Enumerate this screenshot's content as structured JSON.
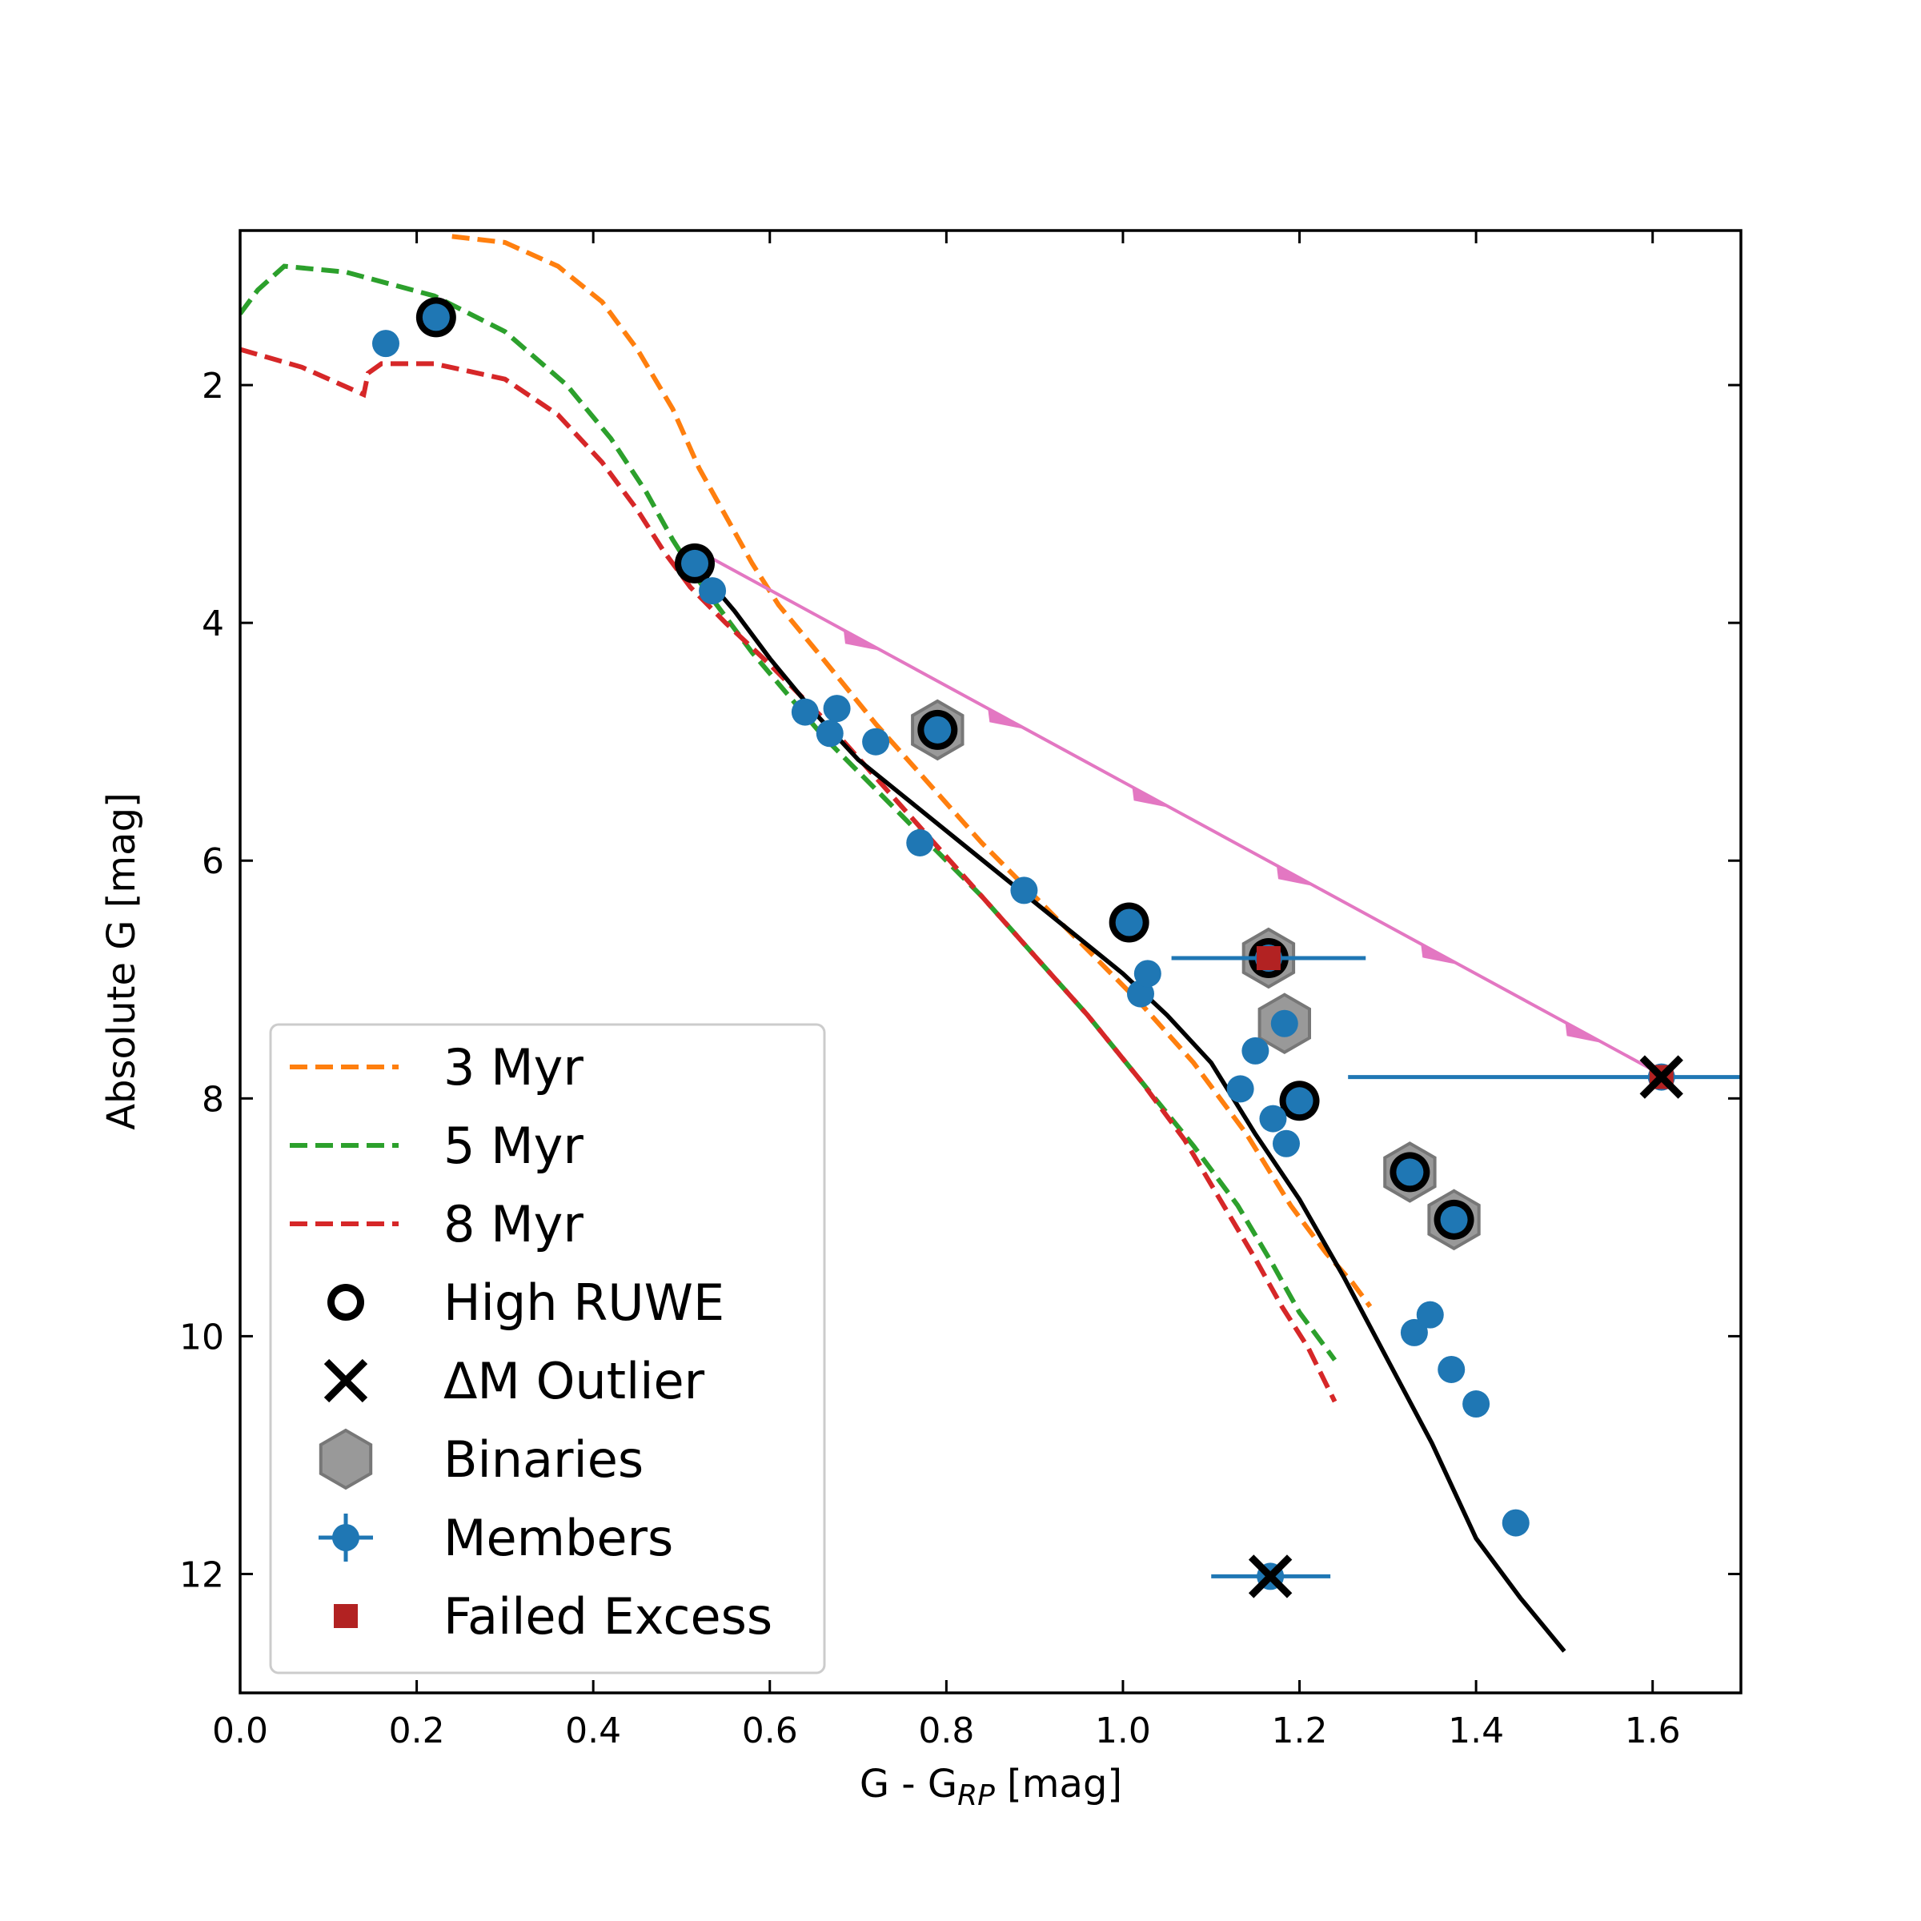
{
  "chart_data": {
    "type": "scatter",
    "xlabel": "G - G",
    "xlabel_sub": "RP",
    "xlabel_unit": " [mag]",
    "ylabel": "Absolute G [mag]",
    "xlim": [
      0.0,
      1.7
    ],
    "ylim": [
      13.0,
      0.7
    ],
    "y_inverted": true,
    "xticks": [
      0.0,
      0.2,
      0.4,
      0.6,
      0.8,
      1.0,
      1.2,
      1.4,
      1.6
    ],
    "xtick_labels": [
      "0.0",
      "0.2",
      "0.4",
      "0.6",
      "0.8",
      "1.0",
      "1.2",
      "1.4",
      "1.6"
    ],
    "yticks": [
      2,
      4,
      6,
      8,
      10,
      12
    ],
    "ytick_labels": [
      "2",
      "4",
      "6",
      "8",
      "10",
      "12"
    ],
    "legend_position": "bottom-left",
    "legend": [
      {
        "key": "iso3",
        "label": "3 Myr"
      },
      {
        "key": "iso5",
        "label": "5 Myr"
      },
      {
        "key": "iso8",
        "label": "8 Myr"
      },
      {
        "key": "ruwe",
        "label": "High RUWE"
      },
      {
        "key": "outlier",
        "label": "ΔM Outlier"
      },
      {
        "key": "binary",
        "label": "Binaries"
      },
      {
        "key": "members",
        "label": "Members"
      },
      {
        "key": "failed",
        "label": "Failed Excess"
      }
    ],
    "colors": {
      "iso3": "#ff7f0e",
      "iso5": "#2ca02c",
      "iso8": "#d62728",
      "members": "#1f77b4",
      "sequence": "#000000",
      "reddening": "#e377c2",
      "binary_fill": "#999999",
      "binary_edge": "#777777",
      "failed": "#b22222"
    },
    "isochrones": [
      {
        "name": "3 Myr",
        "key": "iso3",
        "x": [
          0.24,
          0.3,
          0.36,
          0.41,
          0.45,
          0.49,
          0.52,
          0.55,
          0.58,
          0.61,
          0.66,
          0.72,
          0.78,
          0.84,
          0.9,
          0.96,
          1.02,
          1.08,
          1.14,
          1.19,
          1.23,
          1.26,
          1.28
        ],
        "y": [
          0.75,
          0.8,
          1.0,
          1.3,
          1.7,
          2.2,
          2.7,
          3.1,
          3.5,
          3.85,
          4.3,
          4.85,
          5.35,
          5.85,
          6.3,
          6.75,
          7.2,
          7.7,
          8.3,
          8.9,
          9.3,
          9.55,
          9.75
        ]
      },
      {
        "name": "5 Myr",
        "key": "iso5",
        "x": [
          0.0,
          0.02,
          0.05,
          0.12,
          0.22,
          0.3,
          0.37,
          0.42,
          0.46,
          0.49,
          0.52,
          0.55,
          0.58,
          0.62,
          0.66,
          0.72,
          0.78,
          0.84,
          0.9,
          0.96,
          1.02,
          1.08,
          1.13,
          1.17,
          1.2,
          1.23,
          1.24
        ],
        "y": [
          1.4,
          1.2,
          1.0,
          1.05,
          1.25,
          1.55,
          2.0,
          2.45,
          2.9,
          3.3,
          3.65,
          3.95,
          4.25,
          4.6,
          4.95,
          5.4,
          5.85,
          6.3,
          6.8,
          7.3,
          7.85,
          8.4,
          8.9,
          9.4,
          9.8,
          10.1,
          10.2
        ]
      },
      {
        "name": "8 Myr",
        "key": "iso8",
        "x": [
          0.0,
          0.07,
          0.14,
          0.145,
          0.16,
          0.22,
          0.3,
          0.36,
          0.41,
          0.45,
          0.48,
          0.51,
          0.55,
          0.6,
          0.66,
          0.72,
          0.78,
          0.84,
          0.9,
          0.96,
          1.02,
          1.07,
          1.11,
          1.15,
          1.18,
          1.21,
          1.23,
          1.24
        ],
        "y": [
          1.7,
          1.85,
          2.08,
          1.9,
          1.82,
          1.82,
          1.95,
          2.25,
          2.65,
          3.05,
          3.4,
          3.7,
          4.0,
          4.35,
          4.8,
          5.3,
          5.8,
          6.3,
          6.8,
          7.3,
          7.85,
          8.35,
          8.85,
          9.35,
          9.75,
          10.1,
          10.4,
          10.55
        ]
      },
      {
        "name": "Sequence",
        "key": "sequence",
        "x": [
          0.52,
          0.56,
          0.6,
          0.65,
          0.7,
          0.75,
          0.8,
          0.85,
          0.9,
          0.95,
          1.0,
          1.05,
          1.1,
          1.15,
          1.2,
          1.25,
          1.3,
          1.35,
          1.4,
          1.45,
          1.5
        ],
        "y": [
          3.55,
          3.9,
          4.3,
          4.75,
          5.15,
          5.45,
          5.75,
          6.05,
          6.35,
          6.65,
          6.95,
          7.3,
          7.7,
          8.3,
          8.85,
          9.5,
          10.2,
          10.9,
          11.7,
          12.2,
          12.65
        ]
      }
    ],
    "reddening_vector": {
      "x": [
        0.52,
        1.61
      ],
      "y": [
        3.4,
        7.8
      ],
      "arrow_fractions": [
        0.15,
        0.3,
        0.45,
        0.6,
        0.75,
        0.9
      ]
    },
    "members": [
      {
        "x": 0.165,
        "y": 1.65
      },
      {
        "x": 0.222,
        "y": 1.43
      },
      {
        "x": 0.515,
        "y": 3.5
      },
      {
        "x": 0.535,
        "y": 3.73
      },
      {
        "x": 0.64,
        "y": 4.75
      },
      {
        "x": 0.668,
        "y": 4.93
      },
      {
        "x": 0.676,
        "y": 4.72
      },
      {
        "x": 0.72,
        "y": 5.0
      },
      {
        "x": 0.77,
        "y": 5.85
      },
      {
        "x": 0.79,
        "y": 4.9
      },
      {
        "x": 0.888,
        "y": 6.25
      },
      {
        "x": 1.007,
        "y": 6.52
      },
      {
        "x": 1.02,
        "y": 7.12
      },
      {
        "x": 1.028,
        "y": 6.95
      },
      {
        "x": 1.133,
        "y": 7.92
      },
      {
        "x": 1.15,
        "y": 7.6
      },
      {
        "x": 1.165,
        "y": 6.82
      },
      {
        "x": 1.17,
        "y": 8.17
      },
      {
        "x": 1.183,
        "y": 7.37
      },
      {
        "x": 1.185,
        "y": 8.38
      },
      {
        "x": 1.2,
        "y": 8.02
      },
      {
        "x": 1.167,
        "y": 12.02
      },
      {
        "x": 1.325,
        "y": 8.62
      },
      {
        "x": 1.33,
        "y": 9.97
      },
      {
        "x": 1.348,
        "y": 9.82
      },
      {
        "x": 1.372,
        "y": 10.28
      },
      {
        "x": 1.375,
        "y": 9.02
      },
      {
        "x": 1.4,
        "y": 10.57
      },
      {
        "x": 1.445,
        "y": 11.57
      },
      {
        "x": 1.61,
        "y": 7.82
      }
    ],
    "error_bars": [
      {
        "x": 1.165,
        "y": 6.82,
        "xmin": 1.055,
        "xmax": 1.275
      },
      {
        "x": 1.61,
        "y": 7.82,
        "xmin": 1.255,
        "xmax": 1.7
      },
      {
        "x": 1.167,
        "y": 12.02,
        "xmin": 1.1,
        "xmax": 1.235
      }
    ],
    "high_ruwe": [
      {
        "x": 0.222,
        "y": 1.43
      },
      {
        "x": 0.515,
        "y": 3.5
      },
      {
        "x": 0.79,
        "y": 4.9
      },
      {
        "x": 1.007,
        "y": 6.52
      },
      {
        "x": 1.165,
        "y": 6.82
      },
      {
        "x": 1.2,
        "y": 8.02
      },
      {
        "x": 1.325,
        "y": 8.62
      },
      {
        "x": 1.375,
        "y": 9.02
      }
    ],
    "binaries": [
      {
        "x": 0.79,
        "y": 4.9
      },
      {
        "x": 1.165,
        "y": 6.82
      },
      {
        "x": 1.183,
        "y": 7.37
      },
      {
        "x": 1.325,
        "y": 8.62
      },
      {
        "x": 1.375,
        "y": 9.02
      }
    ],
    "outliers": [
      {
        "x": 1.61,
        "y": 7.82
      },
      {
        "x": 1.167,
        "y": 12.02
      }
    ],
    "failed_excess": [
      {
        "x": 1.165,
        "y": 6.82
      },
      {
        "x": 1.61,
        "y": 7.82
      }
    ]
  }
}
